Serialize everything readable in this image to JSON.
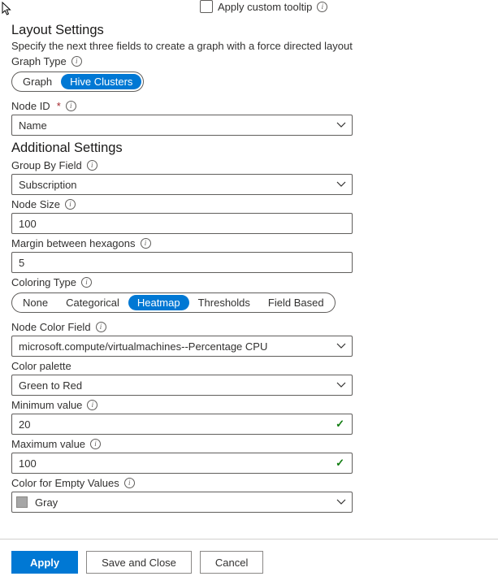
{
  "tooltip": {
    "apply_custom_label": "Apply custom tooltip"
  },
  "layout": {
    "title": "Layout Settings",
    "hint": "Specify the next three fields to create a graph with a force directed layout",
    "graph_type": {
      "label": "Graph Type",
      "options": [
        "Graph",
        "Hive Clusters"
      ],
      "selected_index": 1
    },
    "node_id": {
      "label": "Node ID",
      "value": "Name"
    }
  },
  "additional": {
    "title": "Additional Settings",
    "group_by": {
      "label": "Group By Field",
      "value": "Subscription"
    },
    "node_size": {
      "label": "Node Size",
      "value": "100"
    },
    "margin_hex": {
      "label": "Margin between hexagons",
      "value": "5"
    },
    "coloring_type": {
      "label": "Coloring Type",
      "options": [
        "None",
        "Categorical",
        "Heatmap",
        "Thresholds",
        "Field Based"
      ],
      "selected_index": 2
    },
    "node_color_field": {
      "label": "Node Color Field",
      "value": "microsoft.compute/virtualmachines--Percentage CPU"
    },
    "color_palette": {
      "label": "Color palette",
      "value": "Green to Red"
    },
    "min_value": {
      "label": "Minimum value",
      "value": "20"
    },
    "max_value": {
      "label": "Maximum value",
      "value": "100"
    },
    "empty_color": {
      "label": "Color for Empty Values",
      "value": "Gray",
      "swatch": "#a6a6a6"
    }
  },
  "footer": {
    "apply": "Apply",
    "save_close": "Save and Close",
    "cancel": "Cancel"
  },
  "colors": {
    "accent": "#0078d4",
    "success": "#107c10",
    "border": "#605e5c"
  }
}
